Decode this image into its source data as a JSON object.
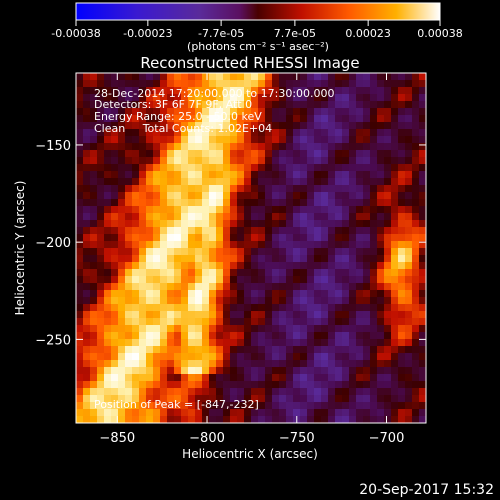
{
  "colorbar": {
    "ticks": [
      "-0.00038",
      "-0.00023",
      "-7.7e-05",
      "7.7e-05",
      "0.00023",
      "0.00038"
    ],
    "tick_values": [
      -0.00038,
      -0.00023,
      -7.7e-05,
      7.7e-05,
      0.00023,
      0.00038
    ],
    "range": [
      -0.00038,
      0.00038
    ],
    "unit_label": "(photons cm⁻² s⁻¹ asec⁻²)"
  },
  "info": {
    "line1": "28-Dec-2014 17:20:00.000 to 17:30:00.000",
    "line2": "Detectors: 3F 6F 7F 9F, Att 0",
    "line3": "Energy Range: 25.0 - 50.0 keV",
    "line4": "Clean     Total Counts: 1.02E+04",
    "peak": "Position of Peak = [-847,-232]"
  },
  "timestamp": "20-Sep-2017 15:32",
  "colors": {
    "background": "#000000",
    "foreground": "#ffffff"
  },
  "chart_data": {
    "type": "heatmap",
    "title": "Reconstructed RHESSI Image",
    "xlabel": "Heliocentric X (arcsec)",
    "ylabel": "Heliocentric Y (arcsec)",
    "xlim": [
      -873,
      -678
    ],
    "ylim": [
      -293,
      -113
    ],
    "x_ticks": [
      -850,
      -800,
      -750,
      -700
    ],
    "y_ticks": [
      -250,
      -200,
      -150
    ],
    "x_tick_labels": [
      "−850",
      "−800",
      "−750",
      "−700"
    ],
    "y_tick_labels": [
      "−250",
      "−200",
      "−150"
    ],
    "colormap": "blue-purple-red-yellow-white",
    "peak_position": [
      -847,
      -232
    ]
  }
}
